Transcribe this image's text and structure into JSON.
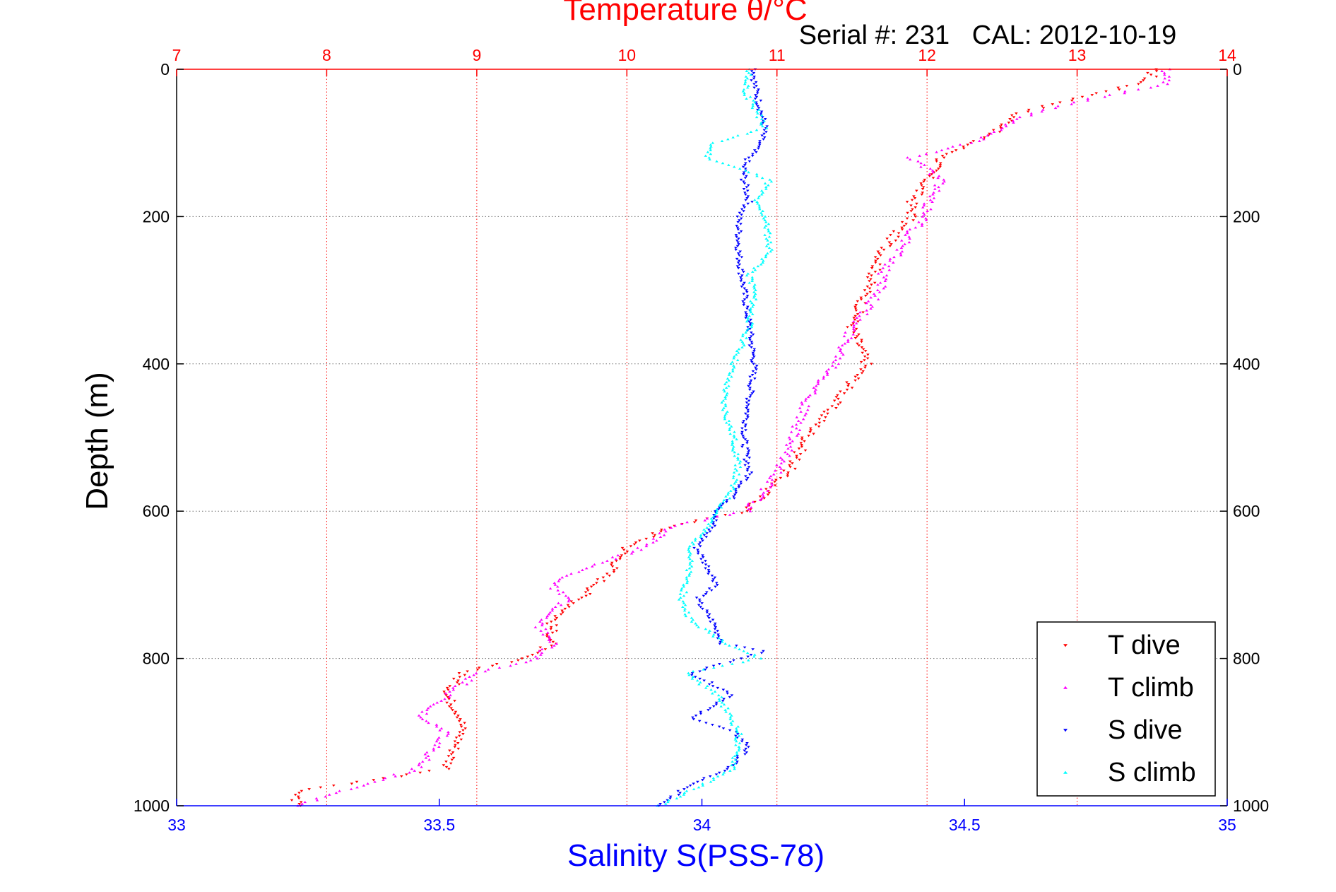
{
  "chart_data": {
    "type": "scatter",
    "title": "Temperature θ/°C",
    "subtitle": "Serial #: 231   CAL: 2012-10-19",
    "ylabel": "Depth (m)",
    "xlabel_bottom": "Salinity S(PSS-78)",
    "xlabel_top": "Temperature θ/°C",
    "ylim": [
      0,
      1000
    ],
    "y_reversed": true,
    "x_bottom_lim": [
      33,
      35
    ],
    "x_top_lim": [
      7,
      14
    ],
    "y_ticks": [
      "0",
      "200",
      "400",
      "600",
      "800",
      "1000"
    ],
    "x_bottom_ticks": [
      "33",
      "33.5",
      "34",
      "34.5",
      "35"
    ],
    "x_top_ticks": [
      "7",
      "8",
      "9",
      "10",
      "11",
      "12",
      "13",
      "14"
    ],
    "grid": true,
    "legend_position": "bottom-right",
    "colors": {
      "temperature_axis": "#ff0000",
      "salinity_axis": "#0000ff",
      "t_dive": "#ff0000",
      "t_climb": "#ff00ff",
      "s_dive": "#0000ff",
      "s_climb": "#00ffff"
    },
    "series": [
      {
        "name": "T dive",
        "axis": "temperature",
        "marker": "triangle-down",
        "color": "#ff0000",
        "depth": [
          0,
          10,
          20,
          40,
          60,
          80,
          100,
          120,
          150,
          180,
          200,
          220,
          250,
          300,
          350,
          400,
          450,
          500,
          540,
          560,
          580,
          600,
          620,
          650,
          680,
          700,
          750,
          780,
          800,
          820,
          850,
          880,
          900,
          950,
          980,
          1000
        ],
        "value": [
          13.5,
          13.5,
          13.4,
          13.0,
          12.6,
          12.5,
          12.3,
          12.1,
          12.0,
          11.9,
          11.9,
          11.8,
          11.7,
          11.6,
          11.5,
          11.6,
          11.4,
          11.2,
          11.1,
          11.0,
          10.9,
          10.8,
          10.3,
          10.0,
          9.9,
          9.8,
          9.5,
          9.5,
          9.3,
          8.9,
          8.8,
          8.9,
          8.9,
          8.8,
          7.8,
          7.8
        ]
      },
      {
        "name": "T climb",
        "axis": "temperature",
        "marker": "triangle-up",
        "color": "#ff00ff",
        "depth": [
          0,
          20,
          40,
          60,
          80,
          100,
          120,
          150,
          180,
          200,
          220,
          250,
          280,
          300,
          350,
          400,
          450,
          500,
          550,
          600,
          620,
          650,
          680,
          700,
          720,
          750,
          780,
          800,
          820,
          850,
          880,
          900,
          950,
          1000
        ],
        "value": [
          13.6,
          13.6,
          13.1,
          12.7,
          12.5,
          12.3,
          11.9,
          12.1,
          12.0,
          12.0,
          11.9,
          11.8,
          11.7,
          11.7,
          11.5,
          11.4,
          11.2,
          11.1,
          11.0,
          10.8,
          10.3,
          10.1,
          9.7,
          9.5,
          9.6,
          9.4,
          9.5,
          9.4,
          9.0,
          8.8,
          8.6,
          8.8,
          8.6,
          7.8
        ]
      },
      {
        "name": "S dive",
        "axis": "salinity",
        "marker": "triangle-down",
        "color": "#0000ff",
        "depth": [
          0,
          20,
          50,
          80,
          100,
          130,
          150,
          180,
          200,
          250,
          300,
          350,
          400,
          450,
          500,
          550,
          580,
          600,
          620,
          650,
          700,
          720,
          750,
          780,
          790,
          820,
          850,
          880,
          900,
          920,
          950,
          970,
          1000
        ],
        "value": [
          34.1,
          34.1,
          34.11,
          34.12,
          34.11,
          34.08,
          34.08,
          34.09,
          34.07,
          34.07,
          34.08,
          34.09,
          34.1,
          34.09,
          34.08,
          34.09,
          34.06,
          34.03,
          34.02,
          33.99,
          34.03,
          33.99,
          34.02,
          34.04,
          34.12,
          33.98,
          34.06,
          33.98,
          34.06,
          34.09,
          34.05,
          33.98,
          33.92
        ]
      },
      {
        "name": "S climb",
        "axis": "salinity",
        "marker": "triangle-up",
        "color": "#00ffff",
        "depth": [
          0,
          30,
          50,
          80,
          100,
          120,
          150,
          180,
          200,
          250,
          280,
          300,
          350,
          400,
          420,
          450,
          480,
          500,
          540,
          580,
          600,
          650,
          700,
          720,
          750,
          780,
          800,
          820,
          850,
          900,
          950,
          1000
        ],
        "value": [
          34.09,
          34.08,
          34.1,
          34.12,
          34.02,
          34.01,
          34.13,
          34.1,
          34.12,
          34.13,
          34.09,
          34.1,
          34.09,
          34.06,
          34.05,
          34.04,
          34.05,
          34.06,
          34.07,
          34.05,
          34.03,
          33.98,
          33.97,
          33.96,
          33.98,
          34.05,
          34.11,
          33.97,
          34.03,
          34.07,
          34.06,
          33.92
        ]
      }
    ]
  }
}
